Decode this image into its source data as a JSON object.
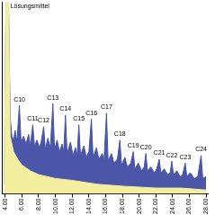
{
  "chart_data": {
    "type": "area",
    "series": [
      {
        "color": "#f3ef9e",
        "x": [
          3.9,
          4.1,
          4.4,
          4.6,
          5.0,
          5.5,
          6.0,
          7,
          8,
          10,
          12,
          15,
          18,
          22,
          25,
          28
        ],
        "values": [
          5,
          100,
          100,
          30,
          22,
          18,
          15,
          12,
          10,
          8,
          7,
          5,
          4,
          3,
          3,
          2
        ]
      },
      {
        "color": "#4b56a8",
        "x": [
          3.9,
          4.1,
          4.4,
          4.6,
          4.8,
          5.0,
          5.2,
          5.4,
          5.7,
          5.9,
          6.2,
          6.5,
          6.8,
          7.0,
          7.3,
          7.5,
          7.8,
          8.1,
          8.3,
          8.6,
          8.8,
          9.1,
          9.4,
          9.7,
          9.9,
          10.2,
          10.5,
          10.8,
          11.0,
          11.2,
          11.4,
          11.8,
          12.1,
          12.4,
          12.6,
          12.8,
          13.0,
          13.4,
          13.7,
          14.0,
          14.3,
          14.5,
          14.9,
          15.2,
          15.6,
          15.8,
          16.1,
          16.3,
          16.7,
          17.0,
          17.4,
          17.7,
          17.9,
          18.3,
          18.6,
          19.0,
          19.3,
          19.5,
          19.9,
          20.3,
          20.6,
          20.8,
          21.0,
          21.4,
          21.8,
          22.1,
          22.4,
          22.6,
          23.0,
          23.4,
          23.7,
          23.9,
          24.1,
          24.5,
          24.9,
          25.2,
          25.5,
          25.7,
          26.1,
          26.6,
          27.0,
          27.4,
          27.6,
          28.0
        ],
        "values": [
          5,
          100,
          100,
          40,
          30,
          28,
          33,
          27,
          46,
          27,
          30,
          26,
          31,
          25,
          36,
          25,
          28,
          24,
          27,
          35,
          23,
          29,
          24,
          47,
          23,
          28,
          22,
          26,
          22,
          41,
          21,
          27,
          20,
          24,
          20,
          36,
          20,
          25,
          19,
          22,
          39,
          19,
          24,
          18,
          21,
          17,
          42,
          17,
          21,
          16,
          18,
          28,
          15,
          19,
          14,
          16,
          22,
          13,
          16,
          12,
          14,
          21,
          12,
          14,
          11,
          13,
          18,
          11,
          13,
          10,
          11,
          17,
          10,
          12,
          9,
          10,
          16,
          9,
          11,
          8,
          9,
          20,
          8,
          9
        ]
      }
    ],
    "annotations": [
      {
        "text": "Lösungsmittel",
        "x": 4.1,
        "y": 100
      },
      {
        "text": "C10",
        "x": 5.7,
        "y": 46
      },
      {
        "text": "C11",
        "x": 7.3,
        "y": 36
      },
      {
        "text": "C12",
        "x": 8.6,
        "y": 35
      },
      {
        "text": "C13",
        "x": 9.7,
        "y": 47
      },
      {
        "text": "C14",
        "x": 11.2,
        "y": 41
      },
      {
        "text": "C15",
        "x": 12.8,
        "y": 36
      },
      {
        "text": "C16",
        "x": 14.3,
        "y": 39
      },
      {
        "text": "C17",
        "x": 16.1,
        "y": 42
      },
      {
        "text": "C18",
        "x": 17.7,
        "y": 28
      },
      {
        "text": "C19",
        "x": 19.3,
        "y": 22
      },
      {
        "text": "C20",
        "x": 20.8,
        "y": 21
      },
      {
        "text": "C21",
        "x": 22.4,
        "y": 18
      },
      {
        "text": "C22",
        "x": 23.9,
        "y": 17
      },
      {
        "text": "C23",
        "x": 25.5,
        "y": 16
      },
      {
        "text": "C24",
        "x": 27.4,
        "y": 20
      }
    ],
    "xlim": [
      3.6,
      28.2
    ],
    "xticks": [
      {
        "value": 4,
        "label": "4.00"
      },
      {
        "value": 6,
        "label": "6.00"
      },
      {
        "value": 8,
        "label": "8.00"
      },
      {
        "value": 10,
        "label": "10.00"
      },
      {
        "value": 12,
        "label": "12.00"
      },
      {
        "value": 14,
        "label": "14.00"
      },
      {
        "value": 16,
        "label": "16.00"
      },
      {
        "value": 18,
        "label": "18.00"
      },
      {
        "value": 20,
        "label": "20.00"
      },
      {
        "value": 22,
        "label": "22.00"
      },
      {
        "value": 24,
        "label": "24.00"
      },
      {
        "value": 26,
        "label": "26.00"
      },
      {
        "value": 28,
        "label": "28.00"
      }
    ],
    "ylim": [
      0,
      100
    ],
    "grid": false,
    "tick_labels": "x"
  }
}
